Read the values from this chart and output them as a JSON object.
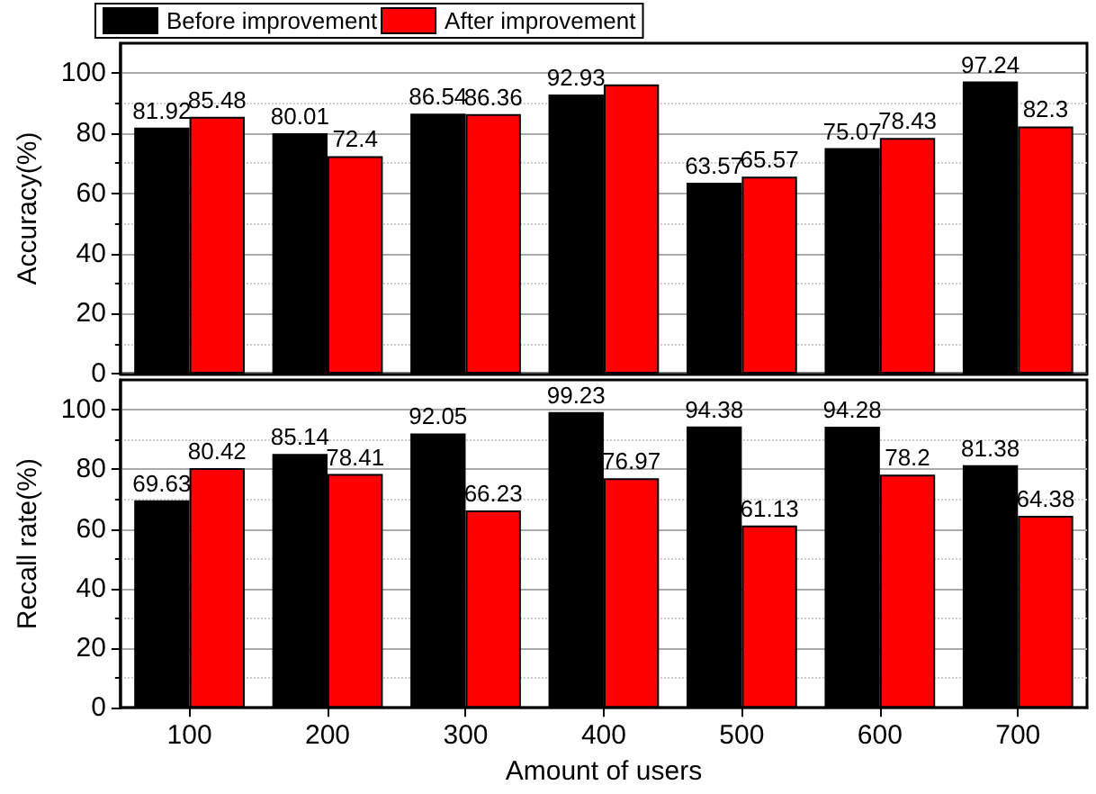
{
  "chart_data": [
    {
      "type": "bar",
      "ylabel": "Accuracy(%)",
      "categories": [
        "100",
        "200",
        "300",
        "400",
        "500",
        "600",
        "700"
      ],
      "ylim": [
        0,
        110
      ],
      "yticks": [
        0,
        20,
        40,
        60,
        80,
        100
      ],
      "grid": "y",
      "legend": "top left",
      "tick_labels": "y",
      "series": [
        {
          "name": "Before improvement",
          "color": "#000000",
          "values": [
            81.92,
            80.01,
            86.54,
            92.93,
            63.57,
            75.07,
            97.24
          ],
          "value_labels": [
            "81.92",
            "80.01",
            "86.54",
            "92.93",
            "63.57",
            "75.07",
            "97.24"
          ]
        },
        {
          "name": "After improvement",
          "color": "#ff0000",
          "values": [
            85.48,
            72.4,
            86.36,
            96.3,
            65.57,
            78.43,
            82.3
          ],
          "value_labels": [
            "85.48",
            "72.4",
            "86.36",
            null,
            "65.57",
            "78.43",
            "82.3"
          ]
        }
      ]
    },
    {
      "type": "bar",
      "ylabel": "Recall rate(%)",
      "xlabel": "Amount of users",
      "categories": [
        "100",
        "200",
        "300",
        "400",
        "500",
        "600",
        "700"
      ],
      "ylim": [
        0,
        110
      ],
      "yticks": [
        0,
        20,
        40,
        60,
        80,
        100
      ],
      "grid": "y",
      "data_labels": true,
      "series": [
        {
          "color": "#000000",
          "values": [
            69.63,
            85.14,
            92.05,
            99.23,
            94.38,
            94.28,
            81.38
          ]
        },
        {
          "color": "#ff0000",
          "values": [
            80.42,
            78.41,
            66.23,
            76.97,
            61.13,
            78.2,
            64.38
          ]
        }
      ]
    }
  ]
}
